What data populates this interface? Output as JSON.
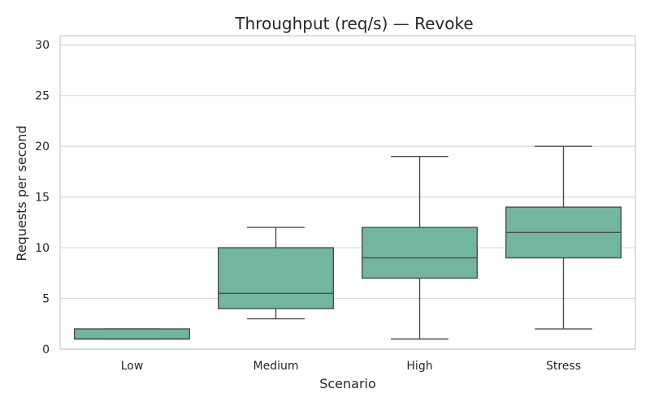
{
  "chart_data": {
    "type": "box",
    "title": "Throughput (req/s) — Revoke",
    "xlabel": "Scenario",
    "ylabel": "Requests per second",
    "ylim": [
      0,
      30.9
    ],
    "yticks": [
      0,
      5,
      10,
      15,
      20,
      25,
      30
    ],
    "grid": true,
    "categories": [
      "Low",
      "Medium",
      "High",
      "Stress"
    ],
    "boxes": [
      {
        "min": 1,
        "q1": 1,
        "median": 1,
        "q3": 2,
        "max": 2
      },
      {
        "min": 3,
        "q1": 4,
        "median": 5.5,
        "q3": 10,
        "max": 12
      },
      {
        "min": 1,
        "q1": 7,
        "median": 9,
        "q3": 12,
        "max": 19
      },
      {
        "min": 2,
        "q1": 9,
        "median": 11.5,
        "q3": 14,
        "max": 20
      }
    ],
    "colors": {
      "box_fill": "#72b6a1",
      "line": "#4d4d4d",
      "grid": "#d9d9d9",
      "frame": "#cccccc"
    }
  }
}
